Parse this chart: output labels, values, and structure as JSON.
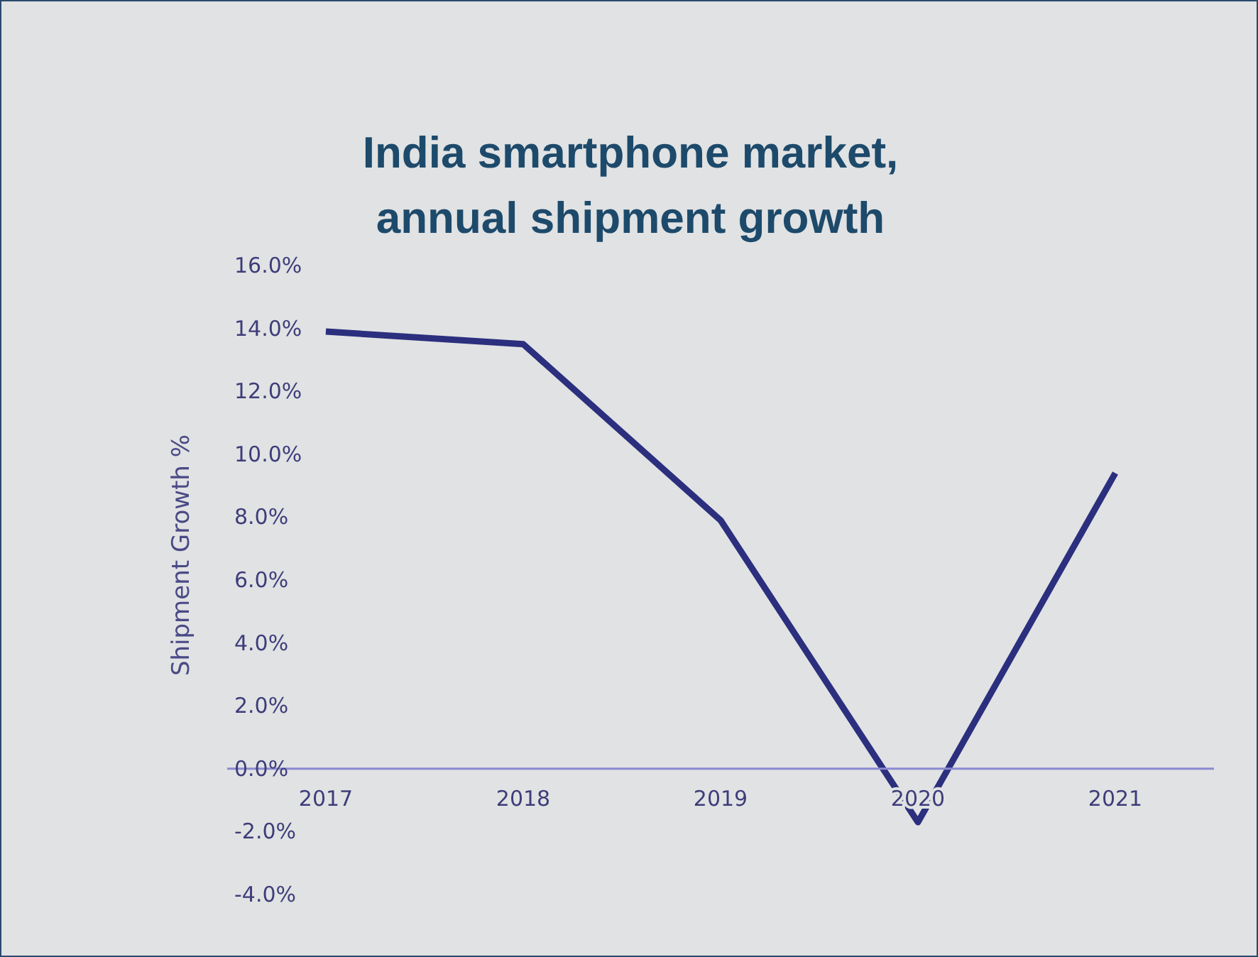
{
  "chart_data": {
    "type": "line",
    "title": "India smartphone market, annual shipment growth",
    "ylabel": "Shipment Growth %",
    "categories": [
      "2017",
      "2018",
      "2019",
      "2020",
      "2021"
    ],
    "series": [
      {
        "color": "#2b2f7e",
        "values": [
          13.9,
          13.5,
          7.9,
          -1.7,
          9.4
        ]
      }
    ],
    "ylim": [
      -4,
      16
    ],
    "yticks": [
      {
        "value": -4,
        "label": "-4.0%"
      },
      {
        "value": -2,
        "label": "-2.0%"
      },
      {
        "value": 0,
        "label": "0.0%"
      },
      {
        "value": 2,
        "label": "2.0%"
      },
      {
        "value": 4,
        "label": "4.0%"
      },
      {
        "value": 6,
        "label": "6.0%"
      },
      {
        "value": 8,
        "label": "8.0%"
      },
      {
        "value": 10,
        "label": "10.0%"
      },
      {
        "value": 12,
        "label": "12.0%"
      },
      {
        "value": 14,
        "label": "14.0%"
      },
      {
        "value": 16,
        "label": "16.0%"
      }
    ],
    "grid": false,
    "legend": false,
    "marker": "none",
    "line_style": "solid"
  }
}
